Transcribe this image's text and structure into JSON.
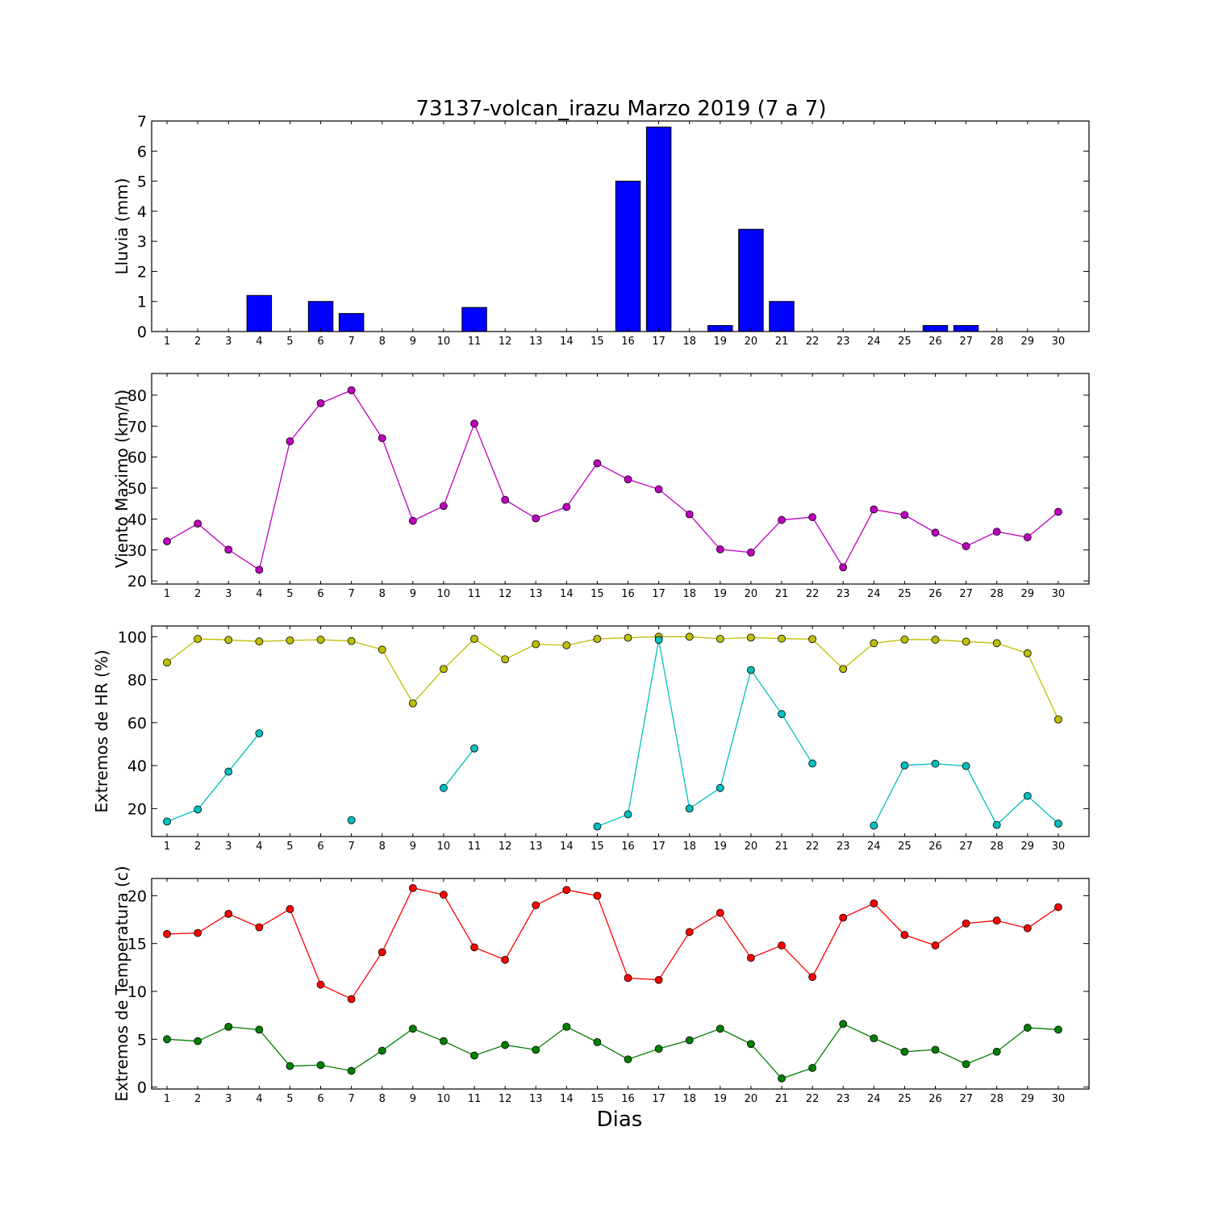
{
  "title": "73137-volcan_irazu Marzo 2019  (7 a 7)",
  "xlabel": "Dias",
  "colors": {
    "rain": "#0000ff",
    "wind": "#bf00bf",
    "hr_max": "#bfbf00",
    "hr_min": "#00bfbf",
    "temp_max": "#ff0000",
    "temp_min": "#008000"
  },
  "chart_data": [
    {
      "type": "bar",
      "ylabel": "Lluvia (mm)",
      "ylim": [
        0,
        7
      ],
      "yticks": [
        0,
        1,
        2,
        3,
        4,
        5,
        6,
        7
      ],
      "categories": [
        "1",
        "2",
        "3",
        "4",
        "5",
        "6",
        "7",
        "8",
        "9",
        "10",
        "11",
        "12",
        "13",
        "14",
        "15",
        "16",
        "17",
        "18",
        "19",
        "20",
        "21",
        "22",
        "23",
        "24",
        "25",
        "26",
        "27",
        "28",
        "29",
        "30"
      ],
      "series": [
        {
          "color_key": "rain",
          "values": [
            0,
            0,
            0,
            1.2,
            0,
            1.0,
            0.6,
            0,
            0,
            0,
            0.8,
            0,
            0,
            0,
            0,
            5.0,
            6.8,
            0,
            0.2,
            3.4,
            1.0,
            0,
            0,
            0,
            0,
            0.2,
            0.2,
            0,
            0,
            0
          ]
        }
      ]
    },
    {
      "type": "line",
      "ylabel": "Viento Maximo (km/h)",
      "ylim": [
        19,
        87
      ],
      "yticks": [
        20,
        30,
        40,
        50,
        60,
        70,
        80
      ],
      "categories": [
        "1",
        "2",
        "3",
        "4",
        "5",
        "6",
        "7",
        "8",
        "9",
        "10",
        "11",
        "12",
        "13",
        "14",
        "15",
        "16",
        "17",
        "18",
        "19",
        "20",
        "21",
        "22",
        "23",
        "24",
        "25",
        "26",
        "27",
        "28",
        "29",
        "30"
      ],
      "series": [
        {
          "color_key": "wind",
          "values": [
            32.8,
            38.5,
            30.1,
            23.6,
            65.1,
            77.4,
            81.6,
            66.1,
            39.4,
            44.2,
            70.8,
            46.2,
            40.2,
            43.9,
            58.0,
            52.8,
            49.6,
            41.5,
            30.2,
            29.2,
            39.7,
            40.6,
            24.4,
            43.1,
            41.3,
            35.6,
            31.2,
            35.9,
            34.1,
            42.3
          ]
        }
      ]
    },
    {
      "type": "line",
      "ylabel": "Extremos de HR (%)",
      "ylim": [
        7,
        105
      ],
      "yticks": [
        20,
        40,
        60,
        80,
        100
      ],
      "categories": [
        "1",
        "2",
        "3",
        "4",
        "5",
        "6",
        "7",
        "8",
        "9",
        "10",
        "11",
        "12",
        "13",
        "14",
        "15",
        "16",
        "17",
        "18",
        "19",
        "20",
        "21",
        "22",
        "23",
        "24",
        "25",
        "26",
        "27",
        "28",
        "29",
        "30"
      ],
      "series": [
        {
          "color_key": "hr_max",
          "values": [
            88,
            99,
            98.5,
            97.8,
            98.3,
            98.6,
            98,
            94,
            69,
            85,
            99,
            89.5,
            96.5,
            96,
            99,
            99.5,
            100,
            100,
            99,
            99.6,
            99.1,
            98.9,
            85,
            97,
            98.7,
            98.6,
            97.7,
            97,
            92.3,
            61.5
          ]
        },
        {
          "color_key": "hr_min",
          "values": [
            14,
            19.6,
            37.2,
            55,
            null,
            null,
            14.6,
            null,
            null,
            29.6,
            48,
            null,
            null,
            null,
            11.7,
            17.3,
            98.5,
            20,
            29.6,
            84.5,
            64,
            41,
            null,
            12.1,
            40.1,
            40.9,
            39.8,
            12.4,
            25.9,
            13
          ]
        }
      ]
    },
    {
      "type": "line",
      "ylabel": "Extremos de Temperatura (c)",
      "ylim": [
        -0.2,
        21.8
      ],
      "yticks": [
        0,
        5,
        10,
        15,
        20
      ],
      "categories": [
        "1",
        "2",
        "3",
        "4",
        "5",
        "6",
        "7",
        "8",
        "9",
        "10",
        "11",
        "12",
        "13",
        "14",
        "15",
        "16",
        "17",
        "18",
        "19",
        "20",
        "21",
        "22",
        "23",
        "24",
        "25",
        "26",
        "27",
        "28",
        "29",
        "30"
      ],
      "series": [
        {
          "color_key": "temp_max",
          "values": [
            16,
            16.1,
            18.1,
            16.7,
            18.6,
            10.7,
            9.2,
            14.1,
            20.8,
            20.1,
            14.6,
            13.3,
            19,
            20.6,
            20,
            11.4,
            11.2,
            16.2,
            18.2,
            13.5,
            14.8,
            11.5,
            17.7,
            19.2,
            15.9,
            14.8,
            17.1,
            17.4,
            16.6,
            18.8
          ]
        },
        {
          "color_key": "temp_min",
          "values": [
            5,
            4.8,
            6.3,
            6,
            2.2,
            2.3,
            1.7,
            3.8,
            6.1,
            4.8,
            3.3,
            4.4,
            3.9,
            6.3,
            4.7,
            2.9,
            4,
            4.9,
            6.1,
            4.5,
            0.9,
            2,
            6.6,
            5.1,
            3.7,
            3.9,
            2.4,
            3.7,
            6.2,
            6
          ]
        }
      ]
    }
  ]
}
